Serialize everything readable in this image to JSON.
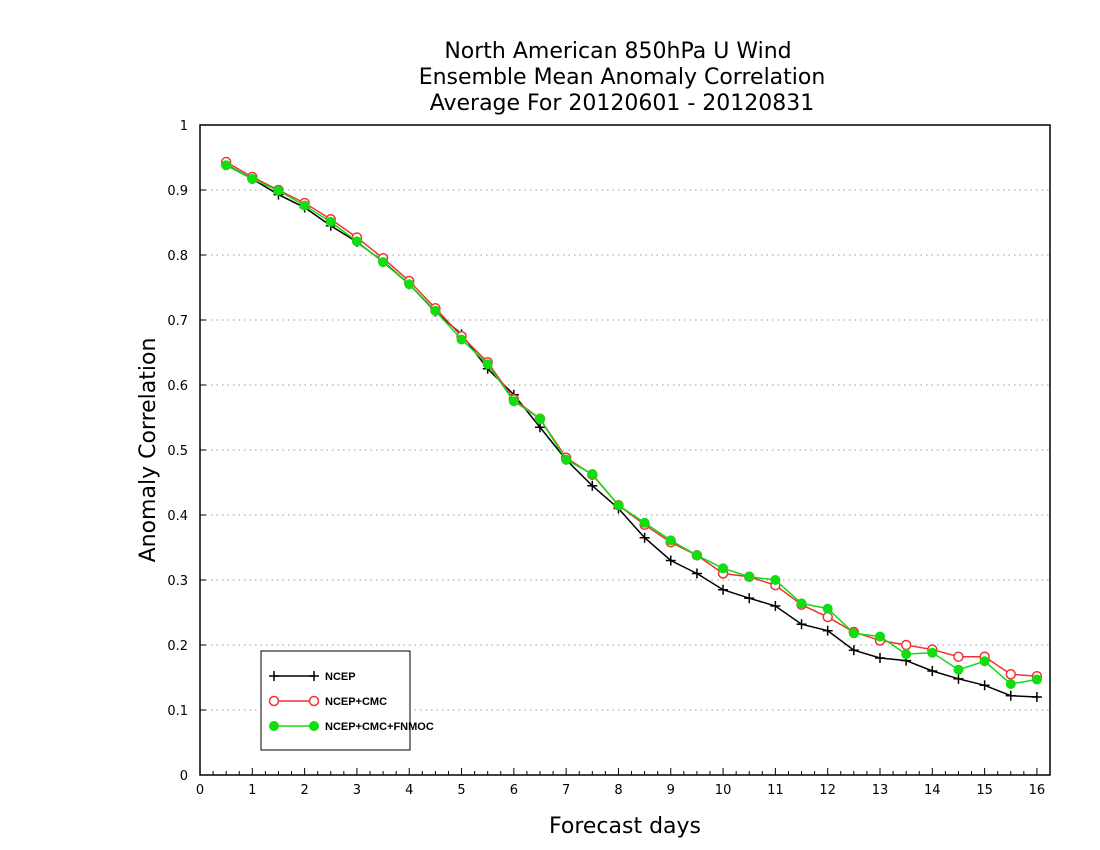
{
  "chart_data": {
    "type": "line",
    "title_lines": [
      "North American 850hPa U Wind",
      "Ensemble Mean Anomaly Correlation",
      "Average For 20120601 - 20120831"
    ],
    "xlabel": "Forecast days",
    "ylabel": "Anomaly Correlation",
    "xlim": [
      0,
      16.25
    ],
    "ylim": [
      0,
      1
    ],
    "x_ticks": [
      "0",
      "1",
      "2",
      "3",
      "4",
      "5",
      "6",
      "7",
      "8",
      "9",
      "10",
      "11",
      "12",
      "13",
      "14",
      "15",
      "16"
    ],
    "y_ticks": [
      "0",
      "0.1",
      "0.2",
      "0.3",
      "0.4",
      "0.5",
      "0.6",
      "0.7",
      "0.8",
      "0.9",
      "1"
    ],
    "grid": "horizontal dotted",
    "legend_position": "bottom-left",
    "x": [
      0.5,
      1,
      1.5,
      2,
      2.5,
      3,
      3.5,
      4,
      4.5,
      5,
      5.5,
      6,
      6.5,
      7,
      7.5,
      8,
      8.5,
      9,
      9.5,
      10,
      10.5,
      11,
      11.5,
      12,
      12.5,
      13,
      13.5,
      14,
      14.5,
      15,
      15.5,
      16
    ],
    "series": [
      {
        "name": "NCEP",
        "color": "#000000",
        "marker": "plus",
        "values": [
          0.939,
          0.917,
          0.893,
          0.873,
          0.845,
          0.82,
          0.79,
          0.755,
          0.713,
          0.678,
          0.625,
          0.585,
          0.535,
          0.485,
          0.445,
          0.41,
          0.365,
          0.33,
          0.31,
          0.285,
          0.272,
          0.26,
          0.232,
          0.222,
          0.192,
          0.18,
          0.176,
          0.16,
          0.148,
          0.138,
          0.122,
          0.12
        ]
      },
      {
        "name": "NCEP+CMC",
        "color": "#ee3333",
        "marker": "open-circle",
        "values": [
          0.943,
          0.92,
          0.9,
          0.88,
          0.855,
          0.827,
          0.795,
          0.76,
          0.718,
          0.675,
          0.635,
          0.578,
          0.548,
          0.488,
          0.462,
          0.415,
          0.385,
          0.358,
          0.338,
          0.31,
          0.305,
          0.292,
          0.262,
          0.243,
          0.22,
          0.207,
          0.2,
          0.193,
          0.182,
          0.182,
          0.155,
          0.152
        ]
      },
      {
        "name": "NCEP+CMC+FNMOC",
        "color": "#11dd11",
        "marker": "filled-circle",
        "values": [
          0.938,
          0.917,
          0.899,
          0.876,
          0.851,
          0.821,
          0.789,
          0.755,
          0.714,
          0.67,
          0.632,
          0.575,
          0.548,
          0.485,
          0.463,
          0.415,
          0.388,
          0.361,
          0.338,
          0.318,
          0.305,
          0.3,
          0.264,
          0.256,
          0.218,
          0.213,
          0.186,
          0.188,
          0.162,
          0.175,
          0.14,
          0.147
        ]
      }
    ]
  }
}
